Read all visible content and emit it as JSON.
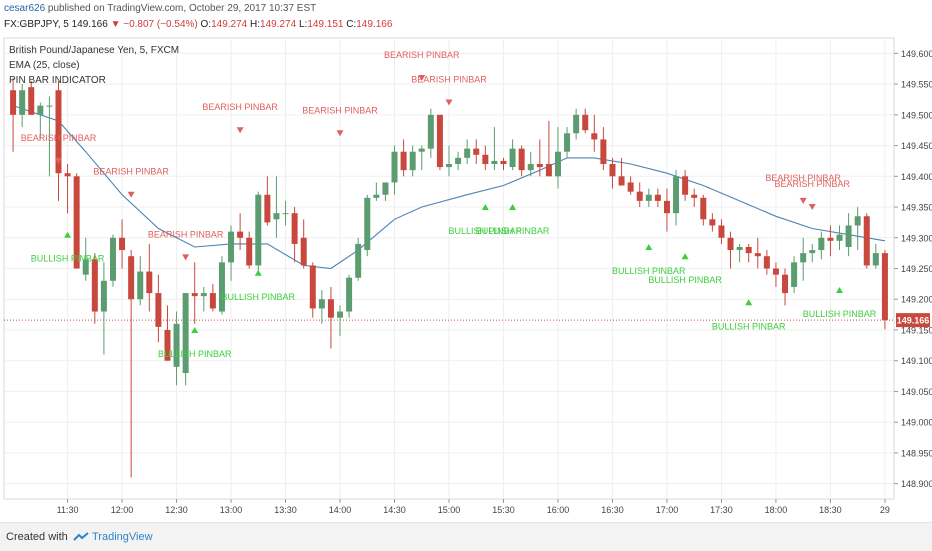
{
  "header": {
    "user": "cesar626",
    "published": "published on TradingView.com, October 29, 2017 10:37 EST",
    "symbol": "FX:GBPJPY, 5",
    "last": "149.166",
    "change": "▼ −0.807 (−0.54%)",
    "open_label": "O:",
    "open": "149.274",
    "high_label": "H:",
    "high": "149.274",
    "low_label": "L:",
    "low": "149.151",
    "close_label": "C:",
    "close": "149.166"
  },
  "legend": {
    "series_title": "British Pound/Japanese Yen, 5, FXCM",
    "ema": "EMA (25, close)",
    "indicator": "PIN BAR INDICATOR"
  },
  "footer": {
    "created_with": "Created with",
    "brand": "TradingView"
  },
  "colors": {
    "up": "#5b9c70",
    "down": "#c9483e",
    "ema": "#4b84b5",
    "bull_label": "#3ccf3c",
    "bear_label": "#e06060",
    "last_price_line": "#c9483e"
  },
  "chart_data": {
    "type": "candlestick",
    "title": "British Pound/Japanese Yen, 5, FXCM",
    "y_ticks": [
      "148.900",
      "148.950",
      "149.000",
      "149.050",
      "149.100",
      "149.150",
      "149.200",
      "149.250",
      "149.300",
      "149.350",
      "149.400",
      "149.450",
      "149.500",
      "149.550",
      "149.600"
    ],
    "ylim": [
      148.875,
      149.625
    ],
    "x_ticks": [
      "11:30",
      "12:00",
      "12:30",
      "13:00",
      "13:30",
      "14:00",
      "14:30",
      "15:00",
      "15:30",
      "16:00",
      "16:30",
      "17:00",
      "17:30",
      "18:00",
      "18:30",
      "29"
    ],
    "x_tick_times_min": [
      690,
      720,
      750,
      780,
      810,
      840,
      870,
      900,
      930,
      960,
      990,
      1020,
      1050,
      1080,
      1110,
      1140
    ],
    "last_price": 149.166,
    "last_price_label": "149.166",
    "candles": [
      {
        "t": 660,
        "o": 149.54,
        "h": 149.56,
        "l": 149.44,
        "c": 149.5
      },
      {
        "t": 665,
        "o": 149.5,
        "h": 149.55,
        "l": 149.48,
        "c": 149.54
      },
      {
        "t": 670,
        "o": 149.545,
        "h": 149.555,
        "l": 149.5,
        "c": 149.5
      },
      {
        "t": 675,
        "o": 149.5,
        "h": 149.52,
        "l": 149.46,
        "c": 149.515
      },
      {
        "t": 680,
        "o": 149.515,
        "h": 149.53,
        "l": 149.4,
        "c": 149.515
      },
      {
        "t": 685,
        "o": 149.54,
        "h": 149.555,
        "l": 149.36,
        "c": 149.405
      },
      {
        "t": 690,
        "o": 149.405,
        "h": 149.42,
        "l": 149.34,
        "c": 149.4
      },
      {
        "t": 695,
        "o": 149.4,
        "h": 149.405,
        "l": 149.25,
        "c": 149.25
      },
      {
        "t": 700,
        "o": 149.24,
        "h": 149.3,
        "l": 149.23,
        "c": 149.265
      },
      {
        "t": 705,
        "o": 149.265,
        "h": 149.275,
        "l": 149.16,
        "c": 149.18
      },
      {
        "t": 710,
        "o": 149.18,
        "h": 149.26,
        "l": 149.11,
        "c": 149.23
      },
      {
        "t": 715,
        "o": 149.23,
        "h": 149.305,
        "l": 149.22,
        "c": 149.3
      },
      {
        "t": 720,
        "o": 149.3,
        "h": 149.33,
        "l": 149.25,
        "c": 149.28
      },
      {
        "t": 725,
        "o": 149.27,
        "h": 149.28,
        "l": 148.91,
        "c": 149.2
      },
      {
        "t": 730,
        "o": 149.2,
        "h": 149.27,
        "l": 149.19,
        "c": 149.245
      },
      {
        "t": 735,
        "o": 149.245,
        "h": 149.29,
        "l": 149.18,
        "c": 149.21
      },
      {
        "t": 740,
        "o": 149.21,
        "h": 149.24,
        "l": 149.13,
        "c": 149.155
      },
      {
        "t": 745,
        "o": 149.15,
        "h": 149.19,
        "l": 149.1,
        "c": 149.1
      },
      {
        "t": 750,
        "o": 149.09,
        "h": 149.18,
        "l": 149.06,
        "c": 149.16
      },
      {
        "t": 755,
        "o": 149.08,
        "h": 149.21,
        "l": 149.06,
        "c": 149.21
      },
      {
        "t": 760,
        "o": 149.21,
        "h": 149.26,
        "l": 149.16,
        "c": 149.205
      },
      {
        "t": 765,
        "o": 149.205,
        "h": 149.22,
        "l": 149.18,
        "c": 149.21
      },
      {
        "t": 770,
        "o": 149.21,
        "h": 149.225,
        "l": 149.18,
        "c": 149.185
      },
      {
        "t": 775,
        "o": 149.18,
        "h": 149.27,
        "l": 149.175,
        "c": 149.26
      },
      {
        "t": 780,
        "o": 149.26,
        "h": 149.32,
        "l": 149.23,
        "c": 149.31
      },
      {
        "t": 785,
        "o": 149.31,
        "h": 149.34,
        "l": 149.28,
        "c": 149.3
      },
      {
        "t": 790,
        "o": 149.3,
        "h": 149.31,
        "l": 149.25,
        "c": 149.255
      },
      {
        "t": 795,
        "o": 149.255,
        "h": 149.375,
        "l": 149.245,
        "c": 149.37
      },
      {
        "t": 800,
        "o": 149.37,
        "h": 149.4,
        "l": 149.32,
        "c": 149.325
      },
      {
        "t": 805,
        "o": 149.33,
        "h": 149.4,
        "l": 149.3,
        "c": 149.34
      },
      {
        "t": 810,
        "o": 149.34,
        "h": 149.36,
        "l": 149.32,
        "c": 149.34
      },
      {
        "t": 815,
        "o": 149.34,
        "h": 149.35,
        "l": 149.26,
        "c": 149.29
      },
      {
        "t": 820,
        "o": 149.3,
        "h": 149.33,
        "l": 149.25,
        "c": 149.255
      },
      {
        "t": 825,
        "o": 149.255,
        "h": 149.26,
        "l": 149.17,
        "c": 149.185
      },
      {
        "t": 830,
        "o": 149.185,
        "h": 149.215,
        "l": 149.16,
        "c": 149.2
      },
      {
        "t": 835,
        "o": 149.2,
        "h": 149.22,
        "l": 149.12,
        "c": 149.17
      },
      {
        "t": 840,
        "o": 149.17,
        "h": 149.19,
        "l": 149.14,
        "c": 149.18
      },
      {
        "t": 845,
        "o": 149.18,
        "h": 149.24,
        "l": 149.17,
        "c": 149.235
      },
      {
        "t": 850,
        "o": 149.235,
        "h": 149.3,
        "l": 149.23,
        "c": 149.29
      },
      {
        "t": 855,
        "o": 149.28,
        "h": 149.37,
        "l": 149.27,
        "c": 149.365
      },
      {
        "t": 860,
        "o": 149.365,
        "h": 149.39,
        "l": 149.36,
        "c": 149.37
      },
      {
        "t": 865,
        "o": 149.37,
        "h": 149.39,
        "l": 149.36,
        "c": 149.39
      },
      {
        "t": 870,
        "o": 149.39,
        "h": 149.45,
        "l": 149.37,
        "c": 149.44
      },
      {
        "t": 875,
        "o": 149.44,
        "h": 149.46,
        "l": 149.4,
        "c": 149.41
      },
      {
        "t": 880,
        "o": 149.41,
        "h": 149.45,
        "l": 149.4,
        "c": 149.44
      },
      {
        "t": 885,
        "o": 149.44,
        "h": 149.45,
        "l": 149.41,
        "c": 149.445
      },
      {
        "t": 890,
        "o": 149.445,
        "h": 149.51,
        "l": 149.43,
        "c": 149.5
      },
      {
        "t": 895,
        "o": 149.5,
        "h": 149.5,
        "l": 149.41,
        "c": 149.415
      },
      {
        "t": 900,
        "o": 149.415,
        "h": 149.45,
        "l": 149.4,
        "c": 149.42
      },
      {
        "t": 905,
        "o": 149.42,
        "h": 149.44,
        "l": 149.41,
        "c": 149.43
      },
      {
        "t": 910,
        "o": 149.43,
        "h": 149.46,
        "l": 149.42,
        "c": 149.445
      },
      {
        "t": 915,
        "o": 149.445,
        "h": 149.46,
        "l": 149.42,
        "c": 149.435
      },
      {
        "t": 920,
        "o": 149.435,
        "h": 149.45,
        "l": 149.41,
        "c": 149.42
      },
      {
        "t": 925,
        "o": 149.42,
        "h": 149.48,
        "l": 149.41,
        "c": 149.425
      },
      {
        "t": 930,
        "o": 149.425,
        "h": 149.43,
        "l": 149.41,
        "c": 149.42
      },
      {
        "t": 935,
        "o": 149.415,
        "h": 149.46,
        "l": 149.41,
        "c": 149.445
      },
      {
        "t": 940,
        "o": 149.445,
        "h": 149.45,
        "l": 149.4,
        "c": 149.41
      },
      {
        "t": 945,
        "o": 149.41,
        "h": 149.44,
        "l": 149.4,
        "c": 149.42
      },
      {
        "t": 950,
        "o": 149.42,
        "h": 149.46,
        "l": 149.4,
        "c": 149.415
      },
      {
        "t": 955,
        "o": 149.42,
        "h": 149.49,
        "l": 149.4,
        "c": 149.4
      },
      {
        "t": 960,
        "o": 149.4,
        "h": 149.48,
        "l": 149.38,
        "c": 149.44
      },
      {
        "t": 965,
        "o": 149.44,
        "h": 149.48,
        "l": 149.43,
        "c": 149.47
      },
      {
        "t": 970,
        "o": 149.47,
        "h": 149.51,
        "l": 149.46,
        "c": 149.5
      },
      {
        "t": 975,
        "o": 149.5,
        "h": 149.51,
        "l": 149.47,
        "c": 149.475
      },
      {
        "t": 980,
        "o": 149.47,
        "h": 149.5,
        "l": 149.44,
        "c": 149.46
      },
      {
        "t": 985,
        "o": 149.46,
        "h": 149.48,
        "l": 149.41,
        "c": 149.42
      },
      {
        "t": 990,
        "o": 149.42,
        "h": 149.43,
        "l": 149.38,
        "c": 149.4
      },
      {
        "t": 995,
        "o": 149.4,
        "h": 149.43,
        "l": 149.39,
        "c": 149.385
      },
      {
        "t": 1000,
        "o": 149.39,
        "h": 149.4,
        "l": 149.37,
        "c": 149.375
      },
      {
        "t": 1005,
        "o": 149.375,
        "h": 149.39,
        "l": 149.35,
        "c": 149.36
      },
      {
        "t": 1010,
        "o": 149.36,
        "h": 149.38,
        "l": 149.35,
        "c": 149.37
      },
      {
        "t": 1015,
        "o": 149.37,
        "h": 149.38,
        "l": 149.35,
        "c": 149.36
      },
      {
        "t": 1020,
        "o": 149.36,
        "h": 149.38,
        "l": 149.31,
        "c": 149.34
      },
      {
        "t": 1025,
        "o": 149.34,
        "h": 149.41,
        "l": 149.32,
        "c": 149.4
      },
      {
        "t": 1030,
        "o": 149.4,
        "h": 149.41,
        "l": 149.36,
        "c": 149.37
      },
      {
        "t": 1035,
        "o": 149.37,
        "h": 149.38,
        "l": 149.35,
        "c": 149.365
      },
      {
        "t": 1040,
        "o": 149.365,
        "h": 149.37,
        "l": 149.32,
        "c": 149.33
      },
      {
        "t": 1045,
        "o": 149.33,
        "h": 149.34,
        "l": 149.31,
        "c": 149.32
      },
      {
        "t": 1050,
        "o": 149.32,
        "h": 149.33,
        "l": 149.29,
        "c": 149.3
      },
      {
        "t": 1055,
        "o": 149.3,
        "h": 149.31,
        "l": 149.25,
        "c": 149.28
      },
      {
        "t": 1060,
        "o": 149.28,
        "h": 149.29,
        "l": 149.26,
        "c": 149.285
      },
      {
        "t": 1065,
        "o": 149.285,
        "h": 149.29,
        "l": 149.26,
        "c": 149.275
      },
      {
        "t": 1070,
        "o": 149.275,
        "h": 149.3,
        "l": 149.25,
        "c": 149.27
      },
      {
        "t": 1075,
        "o": 149.27,
        "h": 149.28,
        "l": 149.24,
        "c": 149.25
      },
      {
        "t": 1080,
        "o": 149.25,
        "h": 149.26,
        "l": 149.22,
        "c": 149.24
      },
      {
        "t": 1085,
        "o": 149.24,
        "h": 149.25,
        "l": 149.19,
        "c": 149.21
      },
      {
        "t": 1090,
        "o": 149.22,
        "h": 149.27,
        "l": 149.21,
        "c": 149.26
      },
      {
        "t": 1095,
        "o": 149.26,
        "h": 149.3,
        "l": 149.23,
        "c": 149.275
      },
      {
        "t": 1100,
        "o": 149.275,
        "h": 149.29,
        "l": 149.26,
        "c": 149.28
      },
      {
        "t": 1105,
        "o": 149.28,
        "h": 149.31,
        "l": 149.265,
        "c": 149.3
      },
      {
        "t": 1110,
        "o": 149.3,
        "h": 149.32,
        "l": 149.27,
        "c": 149.295
      },
      {
        "t": 1115,
        "o": 149.295,
        "h": 149.32,
        "l": 149.28,
        "c": 149.305
      },
      {
        "t": 1120,
        "o": 149.285,
        "h": 149.34,
        "l": 149.27,
        "c": 149.32
      },
      {
        "t": 1125,
        "o": 149.32,
        "h": 149.35,
        "l": 149.28,
        "c": 149.335
      },
      {
        "t": 1130,
        "o": 149.335,
        "h": 149.34,
        "l": 149.25,
        "c": 149.255
      },
      {
        "t": 1135,
        "o": 149.255,
        "h": 149.29,
        "l": 149.25,
        "c": 149.275
      },
      {
        "t": 1140,
        "o": 149.275,
        "h": 149.28,
        "l": 149.151,
        "c": 149.166
      }
    ],
    "ema": {
      "name": "EMA (25, close)",
      "points": [
        [
          660,
          149.515
        ],
        [
          685,
          149.49
        ],
        [
          700,
          149.44
        ],
        [
          720,
          149.37
        ],
        [
          740,
          149.315
        ],
        [
          760,
          149.285
        ],
        [
          780,
          149.29
        ],
        [
          800,
          149.29
        ],
        [
          820,
          149.255
        ],
        [
          835,
          149.25
        ],
        [
          850,
          149.28
        ],
        [
          870,
          149.33
        ],
        [
          885,
          149.35
        ],
        [
          910,
          149.37
        ],
        [
          930,
          149.385
        ],
        [
          950,
          149.41
        ],
        [
          965,
          149.43
        ],
        [
          980,
          149.43
        ],
        [
          1000,
          149.42
        ],
        [
          1020,
          149.405
        ],
        [
          1040,
          149.385
        ],
        [
          1060,
          149.36
        ],
        [
          1080,
          149.335
        ],
        [
          1100,
          149.315
        ],
        [
          1120,
          149.305
        ],
        [
          1140,
          149.295
        ]
      ]
    },
    "pin_bars": [
      {
        "type": "bearish",
        "t": 685,
        "label": "BEARISH PINBAR",
        "price": 149.425
      },
      {
        "type": "bullish",
        "t": 690,
        "label": "BULLISH PINBAR",
        "price": 149.305
      },
      {
        "type": "bearish",
        "t": 725,
        "label": "BEARISH PINBAR",
        "price": 149.37
      },
      {
        "type": "bearish",
        "t": 755,
        "label": "BEARISH PINBAR",
        "price": 149.268
      },
      {
        "type": "bullish",
        "t": 760,
        "label": "BULLISH PINBAR",
        "price": 149.15
      },
      {
        "type": "bearish",
        "t": 785,
        "label": "BEARISH PINBAR",
        "price": 149.475
      },
      {
        "type": "bullish",
        "t": 795,
        "label": "BULLISH PINBAR",
        "price": 149.243
      },
      {
        "type": "bearish",
        "t": 840,
        "label": "BEARISH PINBAR",
        "price": 149.47
      },
      {
        "type": "bearish",
        "t": 885,
        "label": "BEARISH PINBAR",
        "price": 149.56
      },
      {
        "type": "bearish",
        "t": 900,
        "label": "BEARISH PINBAR",
        "price": 149.52
      },
      {
        "type": "bullish",
        "t": 920,
        "label": "BULLISH PINBAR",
        "price": 149.35
      },
      {
        "type": "bullish",
        "t": 935,
        "label": "BULLISH PINBAR",
        "price": 149.35
      },
      {
        "type": "bullish",
        "t": 1010,
        "label": "BULLISH PINBAR",
        "price": 149.285
      },
      {
        "type": "bullish",
        "t": 1030,
        "label": "BULLISH PINBAR",
        "price": 149.27
      },
      {
        "type": "bullish",
        "t": 1065,
        "label": "BULLISH PINBAR",
        "price": 149.195
      },
      {
        "type": "bearish",
        "t": 1095,
        "label": "BEARISH PINBAR",
        "price": 149.36
      },
      {
        "type": "bearish",
        "t": 1100,
        "label": "BEARISH PINBAR",
        "price": 149.35
      },
      {
        "type": "bullish",
        "t": 1115,
        "label": "BULLISH PINBAR",
        "price": 149.215
      }
    ]
  }
}
